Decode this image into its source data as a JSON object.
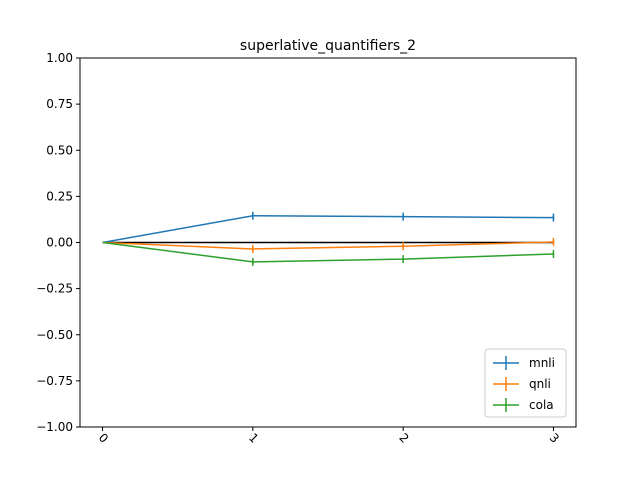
{
  "chart_data": {
    "type": "line",
    "title": "superlative_quantifiers_2",
    "xlabel": "",
    "ylabel": "",
    "x": [
      0,
      1,
      2,
      3
    ],
    "x_tick_labels": [
      "0",
      "1",
      "2",
      "3"
    ],
    "xlim": [
      -0.15,
      3.15
    ],
    "ylim": [
      -1.0,
      1.0
    ],
    "y_ticks": [
      -1.0,
      -0.75,
      -0.5,
      -0.25,
      0.0,
      0.25,
      0.5,
      0.75,
      1.0
    ],
    "y_tick_labels": [
      "−1.00",
      "−0.75",
      "−0.50",
      "−0.25",
      "0.00",
      "0.25",
      "0.50",
      "0.75",
      "1.00"
    ],
    "grid": false,
    "legend_position": "lower-right",
    "baseline": {
      "values": [
        0,
        0,
        0,
        0
      ],
      "color": "#000000"
    },
    "series": [
      {
        "name": "mnli",
        "color": "#1f77b4",
        "values": [
          0.0,
          0.145,
          0.14,
          0.135
        ],
        "errors": [
          0,
          0.01,
          0.01,
          0.01
        ]
      },
      {
        "name": "qnli",
        "color": "#ff7f0e",
        "values": [
          0.0,
          -0.035,
          -0.02,
          0.003
        ],
        "errors": [
          0,
          0.015,
          0.01,
          0.01
        ]
      },
      {
        "name": "cola",
        "color": "#2ca02c",
        "values": [
          0.0,
          -0.105,
          -0.09,
          -0.062
        ],
        "errors": [
          0,
          0.012,
          0.006,
          0.005
        ]
      }
    ]
  }
}
